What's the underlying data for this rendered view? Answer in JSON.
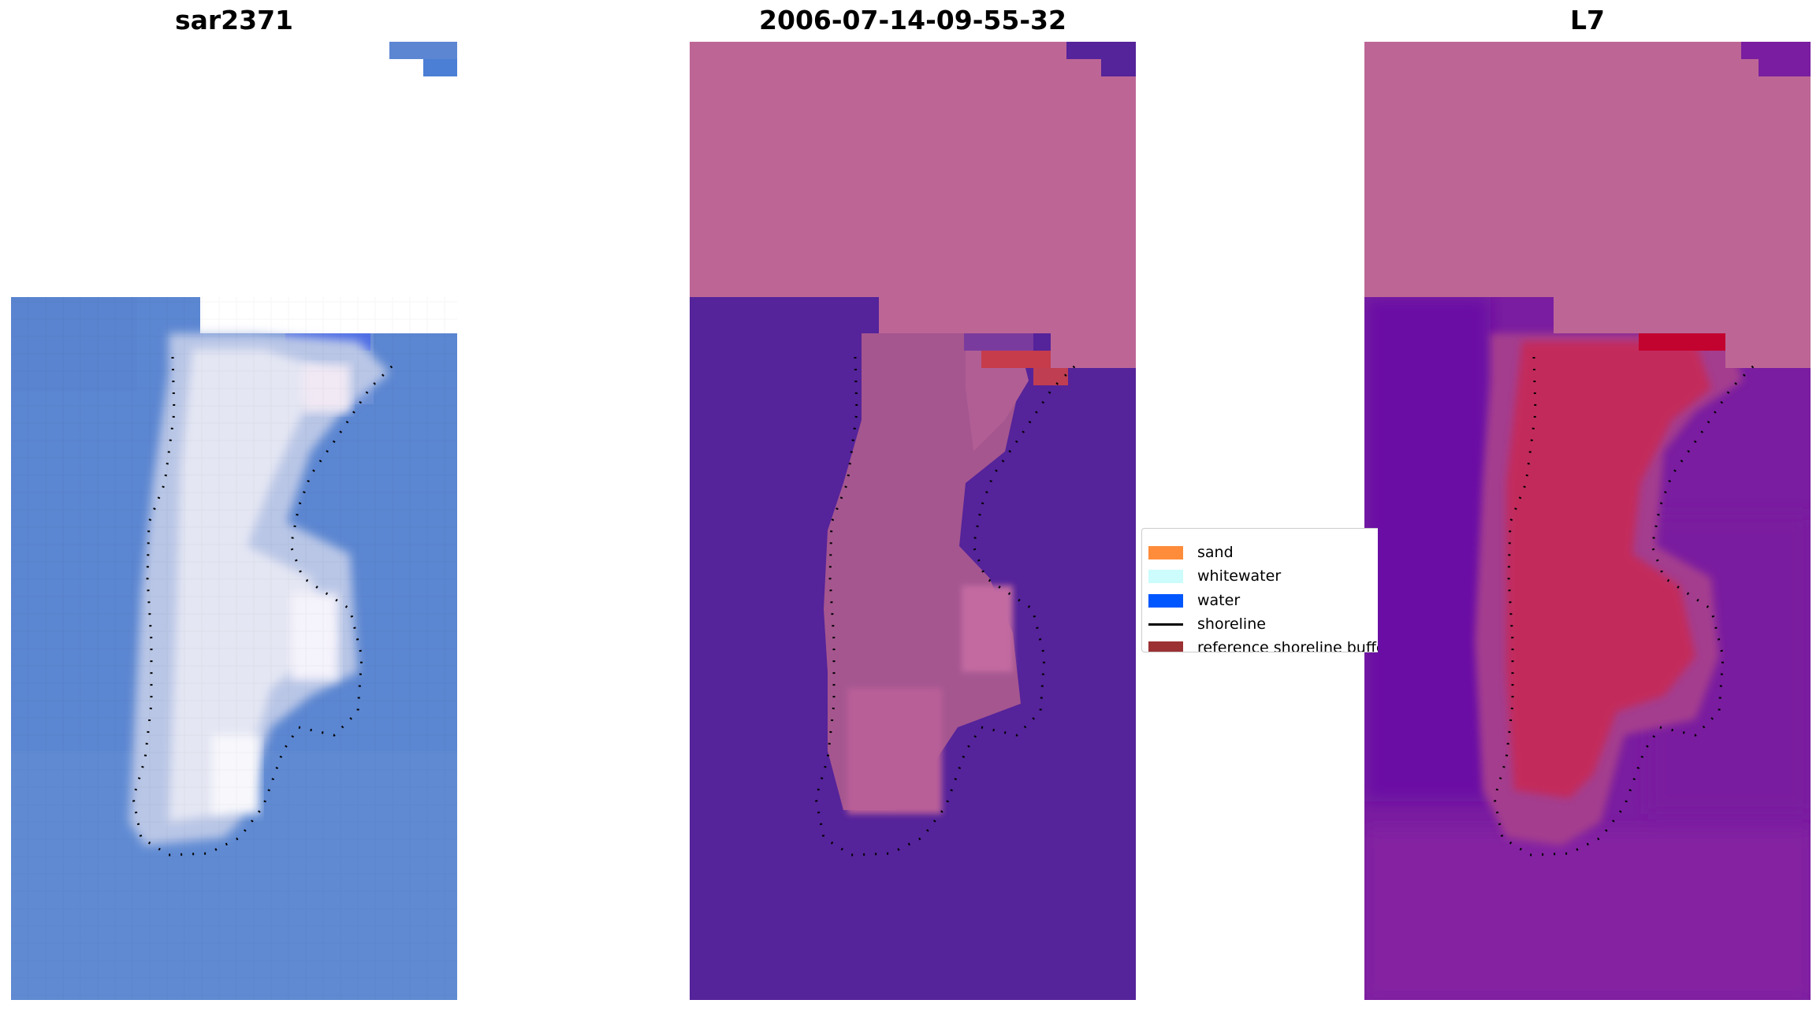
{
  "panels": [
    {
      "title": "sar2371"
    },
    {
      "title": "2006-07-14-09-55-32"
    },
    {
      "title": "L7"
    }
  ],
  "legend": {
    "items": [
      {
        "label": "sand",
        "color": "#ff8c3a",
        "kind": "patch"
      },
      {
        "label": "whitewater",
        "color": "#ccfcfc",
        "kind": "patch"
      },
      {
        "label": "water",
        "color": "#0057ff",
        "kind": "patch"
      },
      {
        "label": "shoreline",
        "color": "#000000",
        "kind": "line"
      },
      {
        "label": "reference shoreline buffer",
        "color": "#9b3133",
        "kind": "patch"
      }
    ]
  },
  "colors": {
    "rgb_water": "#5b86d1",
    "rgb_sand": "#dfe4f2",
    "class_water": "#55239a",
    "class_sand": "#bd6696",
    "class_sand_dark": "#a5568f",
    "buffer_red": "#c63c4b",
    "mndwi_low": "#6a0fa0",
    "mndwi_high": "#c4295a",
    "nodata_pink": "#bd6696",
    "nodata_white": "#ffffff"
  }
}
